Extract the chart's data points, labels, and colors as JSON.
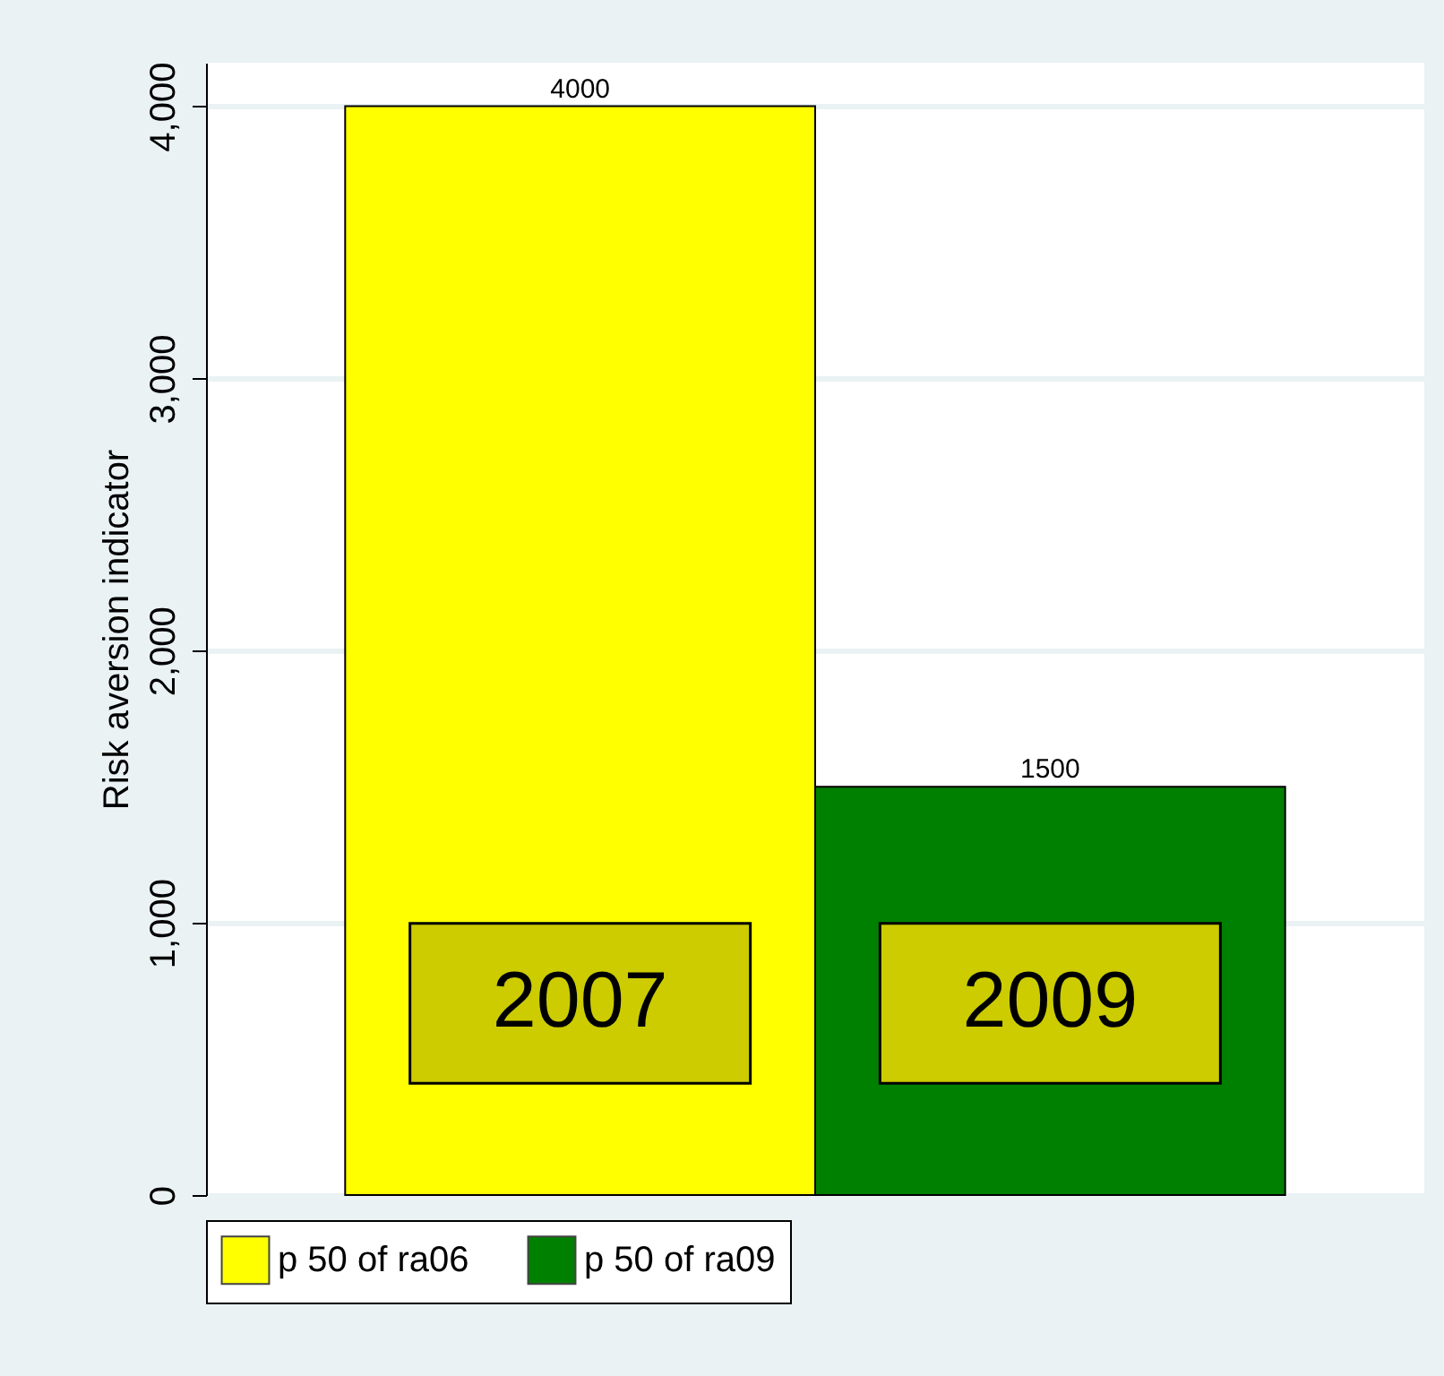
{
  "chart_data": {
    "type": "bar",
    "ylabel": "Risk aversion indicator",
    "categories": [
      null
    ],
    "series": [
      {
        "name": "p 50 of ra06",
        "color": "#ffff00",
        "values": [
          4000
        ]
      },
      {
        "name": "p 50 of ra09",
        "color": "#008000",
        "values": [
          1500
        ]
      }
    ],
    "ylim": [
      0,
      4160
    ],
    "yticks": [
      {
        "value": 0,
        "label": "0"
      },
      {
        "value": 1000,
        "label": "1,000"
      },
      {
        "value": 2000,
        "label": "2,000"
      },
      {
        "value": 3000,
        "label": "3,000"
      },
      {
        "value": 4000,
        "label": "4,000"
      }
    ],
    "grid": "y",
    "legend": "bottom",
    "data_labels": true,
    "annotations": [
      "2007",
      "2009"
    ]
  }
}
